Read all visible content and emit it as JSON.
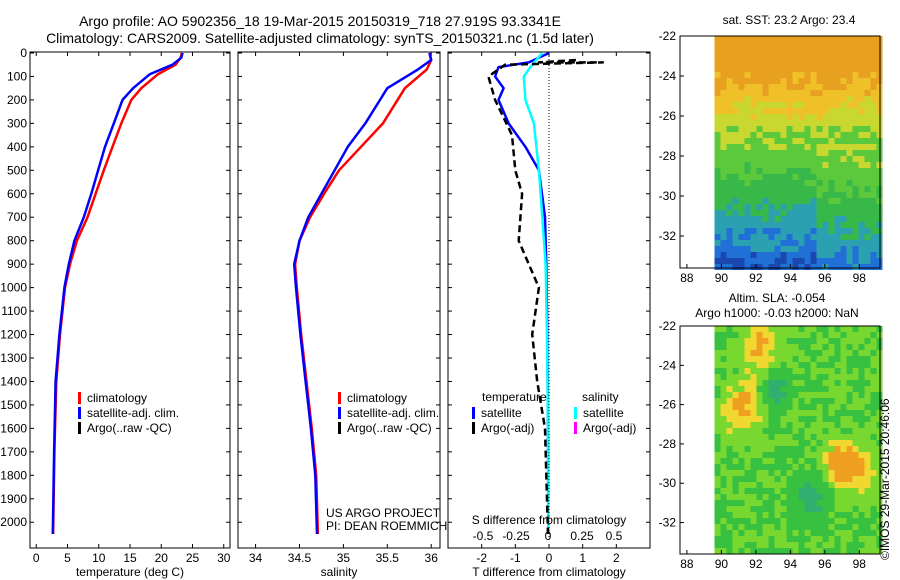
{
  "titles": {
    "line1": "Argo profile: AO 5902356_18 19-Mar-2015 20150319_718 27.919S 93.3341E",
    "line2": "Climatology: CARS2009. Satellite-adjusted climatology: synTS_20150321.nc (1.5d later)"
  },
  "stamp": "©IMOS 29-Mar-2015 20:46:06",
  "colors": {
    "climatology": "#ff0000",
    "satellite": "#0000ff",
    "argo": "#000000",
    "salinity_sat": "#00ffff",
    "salinity_argo": "#ff00ff"
  },
  "chart_data": [
    {
      "id": "temperature",
      "type": "line",
      "xlabel": "temperature (deg C)",
      "ylabel": "",
      "xlim": [
        -1,
        31
      ],
      "ylim": [
        2080,
        0
      ],
      "xticks": [
        0,
        5,
        10,
        15,
        20,
        25,
        30
      ],
      "yticks": [
        0,
        100,
        200,
        300,
        400,
        500,
        600,
        700,
        800,
        900,
        1000,
        1100,
        1200,
        1300,
        1400,
        1500,
        1600,
        1700,
        1800,
        1900,
        2000
      ],
      "legend": {
        "position": "lower-center",
        "entries": [
          "climatology",
          "satellite-adj. clim.",
          "Argo(..raw -QC)"
        ]
      },
      "series": [
        {
          "name": "climatology",
          "color": "#ff0000",
          "x": [
            23.3,
            23.1,
            22.3,
            19.5,
            16.8,
            15.2,
            13.6,
            12.2,
            10.8,
            9.5,
            8.2,
            6.5,
            5.4,
            4.6,
            3.8,
            3.2,
            2.9,
            2.7
          ],
          "y": [
            0,
            20,
            50,
            90,
            150,
            200,
            300,
            400,
            500,
            600,
            700,
            800,
            900,
            1000,
            1200,
            1400,
            1700,
            2050
          ]
        },
        {
          "name": "satellite-adj. clim.",
          "color": "#0000ff",
          "x": [
            23.4,
            23.2,
            21.8,
            18.2,
            15.5,
            13.8,
            12.4,
            11.0,
            9.9,
            8.8,
            7.6,
            6.1,
            5.2,
            4.5,
            3.7,
            3.1,
            2.85,
            2.65
          ],
          "y": [
            0,
            20,
            50,
            90,
            150,
            200,
            300,
            400,
            500,
            600,
            700,
            800,
            900,
            1000,
            1200,
            1400,
            1700,
            2050
          ]
        }
      ]
    },
    {
      "id": "salinity",
      "type": "line",
      "xlabel": "salinity",
      "ylabel": "",
      "xlim": [
        33.8,
        36.1
      ],
      "ylim": [
        2080,
        0
      ],
      "xticks": [
        34,
        34.5,
        35,
        35.5,
        36
      ],
      "legend": {
        "position": "lower-center",
        "entries": [
          "climatology",
          "satellite-adj. clim.",
          "Argo(..raw -QC)"
        ]
      },
      "annotation": [
        "US ARGO PROJECT",
        "PI: DEAN ROEMMICH"
      ],
      "series": [
        {
          "name": "climatology",
          "color": "#ff0000",
          "x": [
            35.98,
            36.0,
            35.95,
            35.7,
            35.45,
            35.2,
            34.95,
            34.78,
            34.62,
            34.5,
            34.45,
            34.47,
            34.52,
            34.58,
            34.64,
            34.69,
            34.71
          ],
          "y": [
            0,
            30,
            70,
            150,
            300,
            400,
            500,
            600,
            700,
            800,
            900,
            1000,
            1200,
            1400,
            1600,
            1800,
            2050
          ]
        },
        {
          "name": "satellite-adj. clim.",
          "color": "#0000ff",
          "x": [
            35.98,
            36.0,
            35.85,
            35.5,
            35.25,
            35.05,
            34.9,
            34.75,
            34.6,
            34.5,
            34.44,
            34.46,
            34.51,
            34.57,
            34.63,
            34.68,
            34.7
          ],
          "y": [
            0,
            30,
            70,
            150,
            300,
            400,
            500,
            600,
            700,
            800,
            900,
            1000,
            1200,
            1400,
            1600,
            1800,
            2050
          ]
        }
      ]
    },
    {
      "id": "differences",
      "type": "line",
      "xlabel": "T difference from climatology",
      "top_label": "S difference from climatology",
      "ylabel": "",
      "xlim": [
        -3.0,
        3.0
      ],
      "ylim": [
        2080,
        0
      ],
      "xticks": [
        -2,
        -1,
        0,
        1,
        2
      ],
      "top_ticks": [
        "-0.5",
        "-0.25",
        "0",
        "0.25",
        "0.5"
      ],
      "legend": {
        "position": "lower-center",
        "groups": [
          "temperature",
          "salinity"
        ],
        "entries": [
          "satellite",
          "Argo(-adj)",
          "satellite",
          "Argo(-adj)"
        ]
      },
      "series": [
        {
          "name": "temperature satellite",
          "color": "#0000ff",
          "x": [
            0,
            -0.6,
            -1.5,
            -1.6,
            -1.35,
            -1.5,
            -1.2,
            -0.7,
            -0.3,
            -0.12,
            -0.08,
            -0.05,
            -0.03,
            -0.02
          ],
          "y": [
            0,
            40,
            60,
            100,
            150,
            200,
            300,
            400,
            500,
            700,
            900,
            1200,
            1600,
            2050
          ]
        },
        {
          "name": "salinity satellite",
          "color": "#00ffff",
          "x": [
            -0.2,
            -0.5,
            -0.75,
            -0.7,
            -0.45,
            -0.3,
            -0.2,
            -0.1,
            -0.06,
            -0.03,
            -0.02
          ],
          "y": [
            0,
            50,
            100,
            200,
            300,
            500,
            700,
            900,
            1200,
            1600,
            2050
          ]
        },
        {
          "name": "temperature Argo(-adj)",
          "color": "#000000",
          "x": [
            0.8,
            -0.3,
            1.6,
            -1.3,
            -1.8,
            -1.6,
            -1.1,
            -1.0,
            -0.8,
            -0.9,
            -0.3,
            -0.5,
            -0.35,
            -0.12,
            -0.08,
            -0.03
          ],
          "y": [
            30,
            40,
            40,
            50,
            100,
            200,
            350,
            500,
            600,
            800,
            1000,
            1200,
            1400,
            1600,
            1800,
            2050
          ]
        }
      ]
    }
  ],
  "maps": [
    {
      "id": "sst",
      "title": "sat. SST: 23.2 Argo: 23.4",
      "xticks": [
        88,
        90,
        92,
        94,
        96,
        98
      ],
      "yticks": [
        -22,
        -24,
        -26,
        -28,
        -30,
        -32
      ]
    },
    {
      "id": "sla",
      "title": "Altim. SLA: -0.054",
      "subtitle": "Argo h1000: -0.03 h2000: NaN",
      "xticks": [
        88,
        90,
        92,
        94,
        96,
        98
      ],
      "yticks": [
        -22,
        -24,
        -26,
        -28,
        -30,
        -32
      ]
    }
  ]
}
